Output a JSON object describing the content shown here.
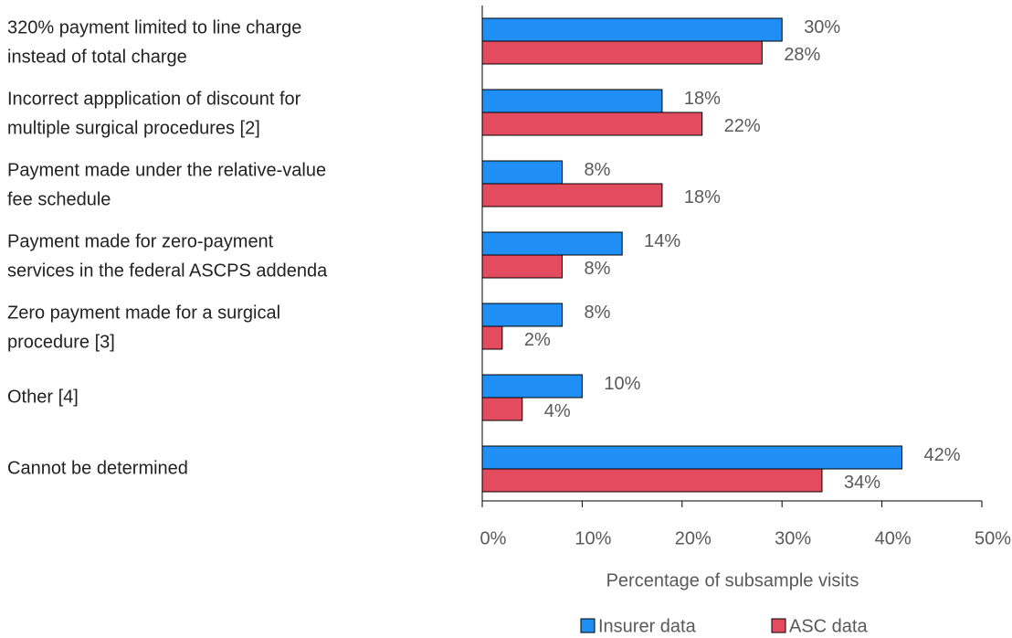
{
  "chart_data": {
    "type": "bar",
    "orientation": "horizontal",
    "x_label": "Percentage of subsample visits",
    "categories": [
      [
        "320% payment limited to line charge",
        "instead of total charge"
      ],
      [
        "Incorrect appplication of discount for",
        "multiple surgical procedures [2]"
      ],
      [
        "Payment made under the relative-value",
        "fee schedule"
      ],
      [
        "Payment made for zero-payment",
        "services in the federal ASCPS addenda"
      ],
      [
        "Zero payment made for a surgical",
        "procedure [3]"
      ],
      [
        "Other [4]"
      ],
      [
        "Cannot be determined"
      ]
    ],
    "series": [
      {
        "name": "Insurer data",
        "color": "#1f8ff5",
        "values": [
          30,
          18,
          8,
          14,
          8,
          10,
          42
        ],
        "value_labels": [
          "30%",
          "18%",
          "8%",
          "14%",
          "8%",
          "10%",
          "42%"
        ]
      },
      {
        "name": "ASC data",
        "color": "#e34b5f",
        "values": [
          28,
          22,
          18,
          8,
          2,
          4,
          34
        ],
        "value_labels": [
          "28%",
          "22%",
          "18%",
          "8%",
          "2%",
          "4%",
          "34%"
        ]
      }
    ],
    "xlim": [
      0,
      50
    ],
    "xticks": [
      {
        "value": 0,
        "label": "0%"
      },
      {
        "value": 10,
        "label": "10%"
      },
      {
        "value": 20,
        "label": "20%"
      },
      {
        "value": 30,
        "label": "30%"
      },
      {
        "value": 40,
        "label": "40%"
      },
      {
        "value": 50,
        "label": "50%"
      }
    ],
    "legend": "bottom"
  }
}
